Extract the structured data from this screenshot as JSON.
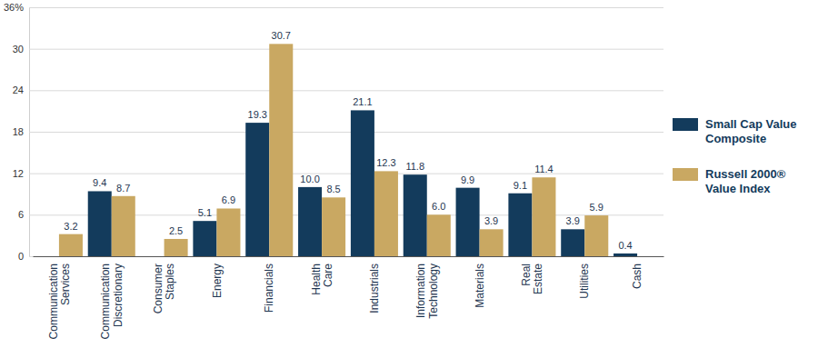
{
  "chart_data": {
    "type": "bar",
    "categories": [
      "Communication Services",
      "Communication Discretionary",
      "Consumer Staples",
      "Energy",
      "Financials",
      "Health Care",
      "Industrials",
      "Information Technology",
      "Materials",
      "Real Estate",
      "Utilities",
      "Cash"
    ],
    "series": [
      {
        "name": "Small Cap Value Composite",
        "color": "#133b5c",
        "values": [
          null,
          9.4,
          null,
          5.1,
          19.3,
          10.0,
          21.1,
          11.8,
          9.9,
          9.1,
          3.9,
          0.4
        ],
        "value_labels": [
          null,
          "9.4",
          null,
          "5.1",
          "19.3",
          "10.0",
          "21.1",
          "11.8",
          "9.9",
          "9.1",
          "3.9",
          "0.4"
        ]
      },
      {
        "name": "Russell 2000® Value Index",
        "color": "#c9a862",
        "values": [
          3.2,
          8.7,
          2.5,
          6.9,
          30.7,
          8.5,
          12.3,
          6.0,
          3.9,
          11.4,
          5.9,
          null
        ],
        "value_labels": [
          "3.2",
          "8.7",
          "2.5",
          "6.9",
          "30.7",
          "8.5",
          "12.3",
          "6.0",
          "3.9",
          "11.4",
          "5.9",
          null
        ]
      }
    ],
    "ylim": [
      0,
      36
    ],
    "yticks": [
      0,
      6,
      12,
      18,
      24,
      30,
      {
        "value": 36,
        "label": "36%"
      }
    ],
    "grid": true,
    "legend": "right",
    "data_labels": true
  }
}
